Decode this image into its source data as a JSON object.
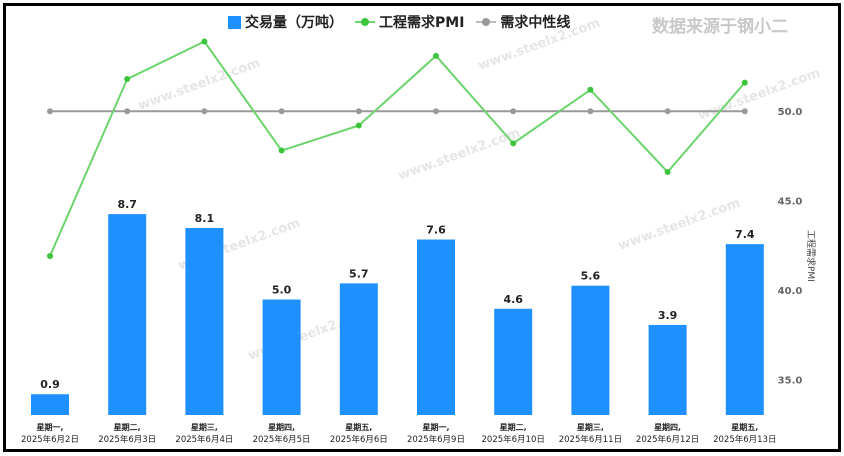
{
  "legend": {
    "bar_label": "交易量（万吨）",
    "line_label": "工程需求PMI",
    "neutral_label": "需求中性线"
  },
  "source": "数据来源于钢小二",
  "watermark": "www.steelx2.com",
  "colors": {
    "bar": "#1e90ff",
    "line": "#6cd46c",
    "neutral": "#999999"
  },
  "chart_data": {
    "type": "bar+line",
    "categories": [
      [
        "星期一,",
        "2025年6月2日"
      ],
      [
        "星期二,",
        "2025年6月3日"
      ],
      [
        "星期三,",
        "2025年6月4日"
      ],
      [
        "星期四,",
        "2025年6月5日"
      ],
      [
        "星期五,",
        "2025年6月6日"
      ],
      [
        "星期一,",
        "2025年6月9日"
      ],
      [
        "星期二,",
        "2025年6月10日"
      ],
      [
        "星期三,",
        "2025年6月11日"
      ],
      [
        "星期四,",
        "2025年6月12日"
      ],
      [
        "星期五,",
        "2025年6月13日"
      ]
    ],
    "series": [
      {
        "name": "交易量（万吨）",
        "type": "bar",
        "axis": "left",
        "values": [
          0.9,
          8.7,
          8.1,
          5.0,
          5.7,
          7.6,
          4.6,
          5.6,
          3.9,
          7.4
        ],
        "labels": [
          "0.9",
          "8.7",
          "8.1",
          "5.0",
          "5.7",
          "7.6",
          "4.6",
          "5.6",
          "3.9",
          "7.4"
        ]
      },
      {
        "name": "工程需求PMI",
        "type": "line",
        "axis": "right",
        "values": [
          41.9,
          51.8,
          53.9,
          47.8,
          49.2,
          53.1,
          48.2,
          51.2,
          46.6,
          51.6
        ]
      },
      {
        "name": "需求中性线",
        "type": "line",
        "axis": "right",
        "values": [
          50,
          50,
          50,
          50,
          50,
          50,
          50,
          50,
          50,
          50
        ]
      }
    ],
    "left_ylim": [
      0,
      17.8
    ],
    "right_ylim": [
      33,
      56
    ],
    "right_ticks": [
      "50.0",
      "45.0",
      "40.0",
      "35.0"
    ],
    "right_tick_values": [
      50,
      45,
      40,
      35
    ],
    "ylabel_right": "工程需求PMI",
    "legend_position": "top"
  }
}
